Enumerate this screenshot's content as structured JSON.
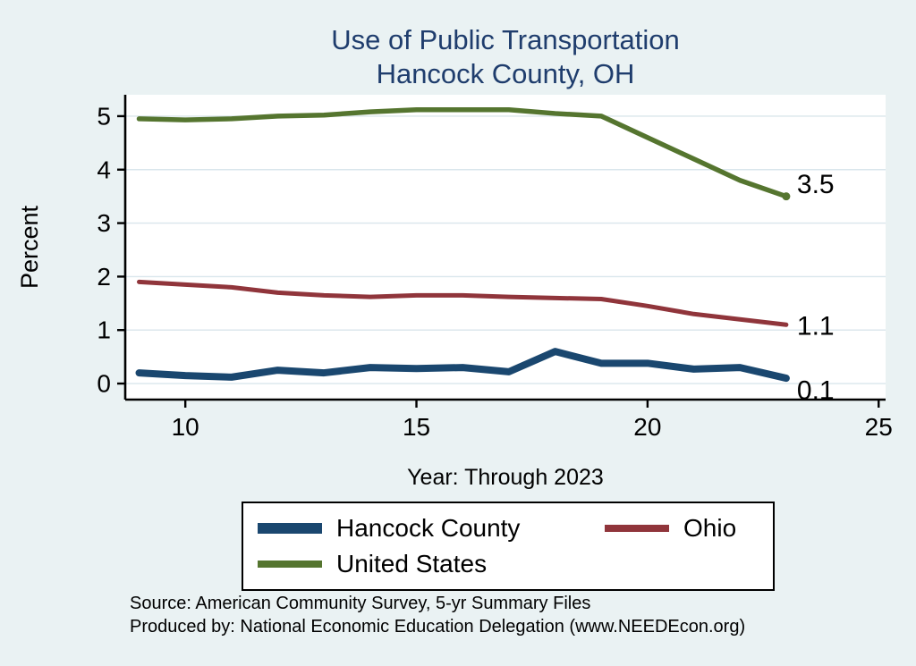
{
  "colors": {
    "background": "#eaf2f3",
    "plot_background": "#ffffff",
    "grid": "#d9e6ec",
    "axis": "#000000",
    "title": "#1f3d6d"
  },
  "chart_data": {
    "type": "line",
    "title": "Use of Public Transportation",
    "subtitle": "Hancock County, OH",
    "xlabel": "Year: Through 2023",
    "ylabel": "Percent",
    "x": [
      9,
      10,
      11,
      12,
      13,
      14,
      15,
      16,
      17,
      18,
      19,
      20,
      21,
      22,
      23
    ],
    "x_ticks": [
      10,
      15,
      20,
      25
    ],
    "y_ticks": [
      0,
      1,
      2,
      3,
      4,
      5
    ],
    "xlim": [
      8.7,
      25.15
    ],
    "ylim": [
      -0.3,
      5.4
    ],
    "grid": "horizontal",
    "legend_position": "bottom",
    "series": [
      {
        "name": "Hancock County",
        "color": "#1a476f",
        "end_label": "0.1",
        "values": [
          0.2,
          0.15,
          0.12,
          0.25,
          0.2,
          0.3,
          0.28,
          0.3,
          0.22,
          0.6,
          0.38,
          0.38,
          0.27,
          0.3,
          0.1
        ]
      },
      {
        "name": "Ohio",
        "color": "#90353b",
        "end_label": "1.1",
        "values": [
          1.9,
          1.85,
          1.8,
          1.7,
          1.65,
          1.62,
          1.65,
          1.65,
          1.62,
          1.6,
          1.58,
          1.45,
          1.3,
          1.2,
          1.1
        ]
      },
      {
        "name": "United States",
        "color": "#55752f",
        "end_label": "3.5",
        "values": [
          4.95,
          4.93,
          4.95,
          5.0,
          5.02,
          5.08,
          5.12,
          5.12,
          5.12,
          5.05,
          5.0,
          4.6,
          4.2,
          3.8,
          3.5
        ]
      }
    ]
  },
  "footer": {
    "source": "Source: American Community Survey, 5-yr Summary Files",
    "produced_by": "Produced by: National Economic Education Delegation (www.NEEDEcon.org)"
  }
}
